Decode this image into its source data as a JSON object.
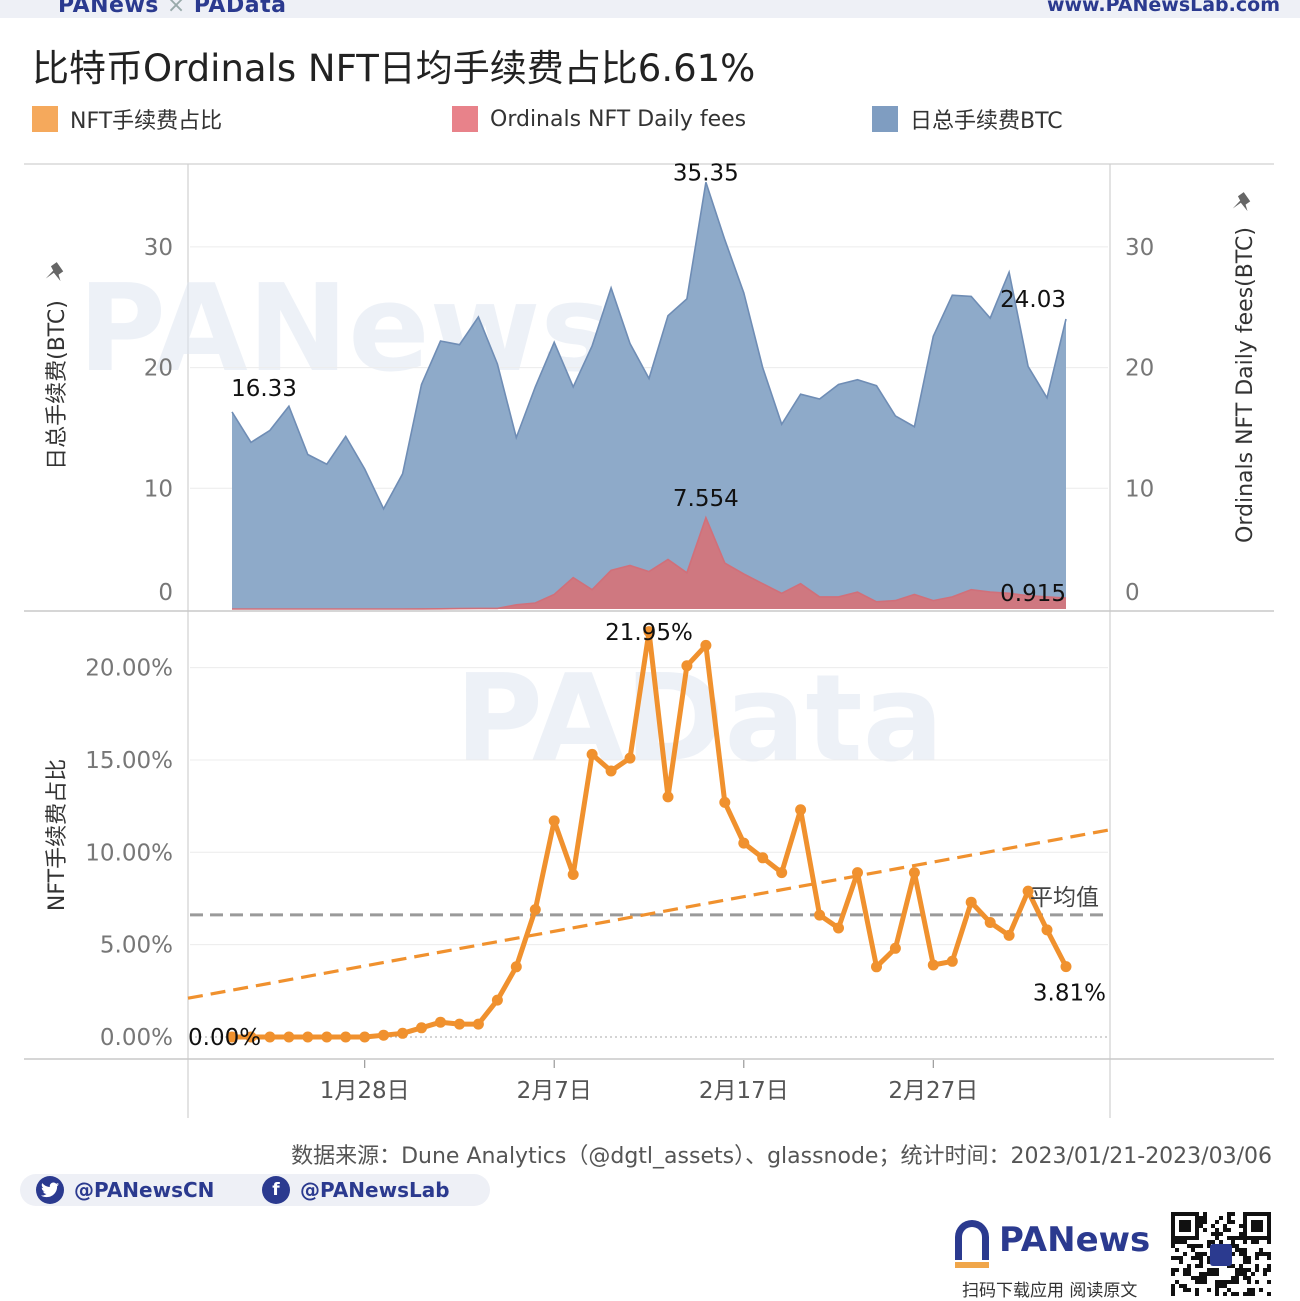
{
  "header": {
    "left_brand_1": "PANews",
    "left_sep": "×",
    "left_brand_2": "PAData",
    "right_url": "www.PANewsLab.com"
  },
  "title": "比特币Ordinals NFT日均手续费占比6.61%",
  "legend": [
    {
      "label": "NFT手续费占比",
      "color": "#f5a95c"
    },
    {
      "label": "Ordinals NFT Daily fees",
      "color": "#e8828a"
    },
    {
      "label": "日总手续费BTC",
      "color": "#7f9dc1"
    }
  ],
  "colors": {
    "total_fill": "#8eaac9",
    "total_line": "#6f8db5",
    "nft_fill": "#cf7880",
    "nft_line": "#d0707a",
    "pct_line": "#f0912e",
    "trend": "#f0912e",
    "avg": "#9a9a9a"
  },
  "watermarks": {
    "top": "PANews",
    "bottom": "PAData"
  },
  "chart_data": [
    {
      "type": "area",
      "ylabel_left": "日总手续费(BTC)",
      "ylabel_right": "Ordinals NFT Daily fees(BTC)",
      "ylim": [
        0,
        36
      ],
      "yticks": [
        0,
        10,
        20,
        30
      ],
      "x_start": "2023/01/21",
      "x_end": "2023/03/06",
      "xticks": [
        {
          "date": "2023/01/28",
          "label": "1月28日"
        },
        {
          "date": "2023/02/07",
          "label": "2月7日"
        },
        {
          "date": "2023/02/17",
          "label": "2月17日"
        },
        {
          "date": "2023/02/27",
          "label": "2月27日"
        }
      ],
      "series": [
        {
          "name": "日总手续费BTC",
          "values": [
            16.33,
            13.8,
            14.8,
            16.8,
            12.8,
            12.0,
            14.3,
            11.6,
            8.3,
            11.2,
            18.6,
            22.2,
            21.9,
            24.2,
            20.3,
            14.2,
            18.4,
            22.1,
            18.4,
            21.8,
            26.6,
            22.0,
            19.1,
            24.3,
            25.7,
            35.35,
            30.6,
            26.2,
            20.0,
            15.3,
            17.8,
            17.4,
            18.6,
            19.0,
            18.5,
            16.0,
            15.1,
            22.6,
            26.0,
            25.9,
            24.1,
            27.9,
            20.1,
            17.5,
            24.03
          ]
        },
        {
          "name": "Ordinals NFT Daily fees",
          "values": [
            0,
            0,
            0,
            0,
            0,
            0,
            0,
            0,
            0,
            0,
            0.01,
            0.02,
            0.03,
            0.05,
            0.05,
            0.35,
            0.5,
            1.2,
            2.6,
            1.6,
            3.2,
            3.6,
            3.1,
            4.1,
            3.0,
            7.554,
            3.8,
            2.9,
            2.1,
            1.3,
            2.1,
            1.0,
            1.0,
            1.4,
            0.6,
            0.7,
            1.2,
            0.7,
            1.0,
            1.6,
            1.4,
            1.3,
            1.1,
            1.0,
            0.915
          ]
        }
      ],
      "data_labels": [
        {
          "series": 0,
          "index": 0,
          "text": "16.33"
        },
        {
          "series": 0,
          "index": 25,
          "text": "35.35"
        },
        {
          "series": 0,
          "index": 44,
          "text": "24.03"
        },
        {
          "series": 1,
          "index": 25,
          "text": "7.554"
        },
        {
          "series": 1,
          "index": 44,
          "text": "0.915"
        }
      ],
      "ytick_labels": [
        "0",
        "10",
        "20",
        "30"
      ],
      "xtick_labels": [
        "1月28日",
        "2月7日",
        "2月17日",
        "2月27日"
      ]
    },
    {
      "type": "line",
      "ylabel": "NFT手续费占比",
      "ylim": [
        -1.2,
        23.2
      ],
      "yticks": [
        0,
        5,
        10,
        15,
        20
      ],
      "ytick_labels": [
        "0.00%",
        "5.00%",
        "10.00%",
        "15.00%",
        "20.00%"
      ],
      "series": [
        {
          "name": "NFT手续费占比",
          "values": [
            0.0,
            0.0,
            0.0,
            0.0,
            0.0,
            0.0,
            0.0,
            0.0,
            0.1,
            0.2,
            0.5,
            0.8,
            0.7,
            0.7,
            2.0,
            3.8,
            6.9,
            11.7,
            8.8,
            15.3,
            14.4,
            15.1,
            21.95,
            13.0,
            20.1,
            21.2,
            12.7,
            10.5,
            9.7,
            8.9,
            12.3,
            6.6,
            5.9,
            8.9,
            3.8,
            4.8,
            8.9,
            3.9,
            4.1,
            7.3,
            6.2,
            5.5,
            7.9,
            5.8,
            3.81
          ]
        }
      ],
      "average": 6.61,
      "average_label": "平均值",
      "trendline": {
        "start": 2.1,
        "end_at_chart_right": 11.2
      },
      "data_labels": [
        {
          "index": 0,
          "text": "0.00%"
        },
        {
          "index": 22,
          "text": "21.95%"
        },
        {
          "index": 44,
          "text": "3.81%"
        }
      ]
    }
  ],
  "source": "数据来源：Dune Analytics（@dgtl_assets）、glassnode；统计时间：2023/01/21-2023/03/06",
  "social": {
    "twitter": "@PANewsCN",
    "facebook": "@PANewsLab",
    "twitter_icon": "twitter-icon",
    "facebook_icon": "facebook-icon",
    "facebook_glyph": "f"
  },
  "brand": {
    "name": "PANews",
    "sub": "扫码下载应用  阅读原文"
  }
}
